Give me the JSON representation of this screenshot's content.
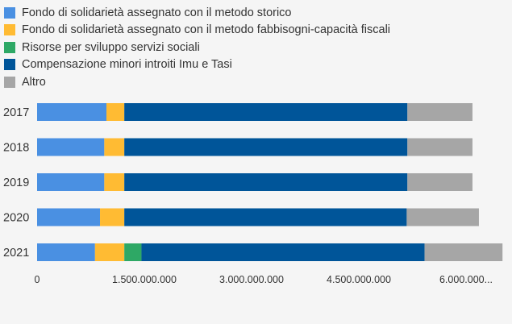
{
  "chart_data": {
    "type": "bar",
    "orientation": "horizontal",
    "stacked": true,
    "categories": [
      "2017",
      "2018",
      "2019",
      "2020",
      "2021"
    ],
    "series": [
      {
        "name": "Fondo di solidarietà assegnato con il metodo storico",
        "color": "#4a90e2",
        "values": [
          970000000,
          940000000,
          940000000,
          880000000,
          810000000
        ]
      },
      {
        "name": "Fondo di solidarietà assegnato con il metodo fabbisogni-capacità fiscali",
        "color": "#ffbb33",
        "values": [
          250000000,
          280000000,
          280000000,
          340000000,
          410000000
        ]
      },
      {
        "name": "Risorse per sviluppo servizi sociali",
        "color": "#2ea865",
        "values": [
          0,
          0,
          0,
          0,
          240000000
        ]
      },
      {
        "name": "Compensazione minori introiti Imu e Tasi",
        "color": "#005599",
        "values": [
          3960000000,
          3960000000,
          3960000000,
          3950000000,
          3960000000
        ]
      },
      {
        "name": "Altro",
        "color": "#a6a6a6",
        "values": [
          910000000,
          910000000,
          910000000,
          1010000000,
          1090000000
        ]
      }
    ],
    "xlim": [
      0,
      6000000000
    ],
    "x_ticks": [
      {
        "value": 0,
        "label": "0"
      },
      {
        "value": 1500000000,
        "label": "1.500.000.000"
      },
      {
        "value": 3000000000,
        "label": "3.000.000.000"
      },
      {
        "value": 4500000000,
        "label": "4.500.000.000"
      },
      {
        "value": 6000000000,
        "label": "6.000.000..."
      }
    ],
    "legend_position": "top-left",
    "grid": false,
    "title": "",
    "xlabel": "",
    "ylabel": ""
  }
}
